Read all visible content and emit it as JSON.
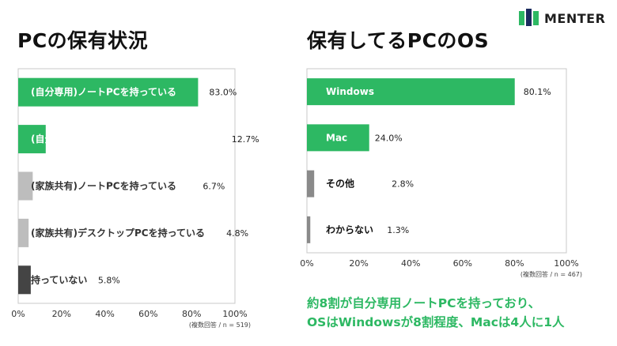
{
  "brand": {
    "name": "MENTER",
    "color": "#2db863"
  },
  "titles": {
    "left": "PCの保有状況",
    "right": "保有してるPCのOS"
  },
  "summary": {
    "line1": "約8割が自分専用ノートPCを持っており、",
    "line2": "OSはWindowsが8割程度、Macは4人に1人"
  },
  "chart_data": [
    {
      "type": "bar",
      "orientation": "horizontal",
      "title": "PCの保有状況",
      "categories": [
        "(自分専用)ノートPCを持っている",
        "(自分専用)デスクトップPCを持っている",
        "(家族共有)ノートPCを持っている",
        "(家族共有)デスクトップPCを持っている",
        "持っていない"
      ],
      "values": [
        83.0,
        12.7,
        6.7,
        4.8,
        5.8
      ],
      "value_labels": [
        "83.0%",
        "12.7%",
        "6.7%",
        "4.8%",
        "5.8%"
      ],
      "bar_colors": [
        "#2db863",
        "#2db863",
        "#bdbdbd",
        "#bdbdbd",
        "#444444"
      ],
      "xlim": [
        0,
        100
      ],
      "xticks": [
        "0%",
        "20%",
        "40%",
        "60%",
        "80%",
        "100%"
      ],
      "note": "(複数回答 / n = 519)"
    },
    {
      "type": "bar",
      "orientation": "horizontal",
      "title": "保有してるPCのOS",
      "categories": [
        "Windows",
        "Mac",
        "その他",
        "わからない"
      ],
      "values": [
        80.1,
        24.0,
        2.8,
        1.3
      ],
      "value_labels": [
        "80.1%",
        "24.0%",
        "2.8%",
        "1.3%"
      ],
      "bar_colors": [
        "#2db863",
        "#2db863",
        "#8a8a8a",
        "#8a8a8a"
      ],
      "xlim": [
        0,
        100
      ],
      "xticks": [
        "0%",
        "20%",
        "40%",
        "60%",
        "80%",
        "100%"
      ],
      "note": "(複数回答 / n = 467)"
    }
  ]
}
